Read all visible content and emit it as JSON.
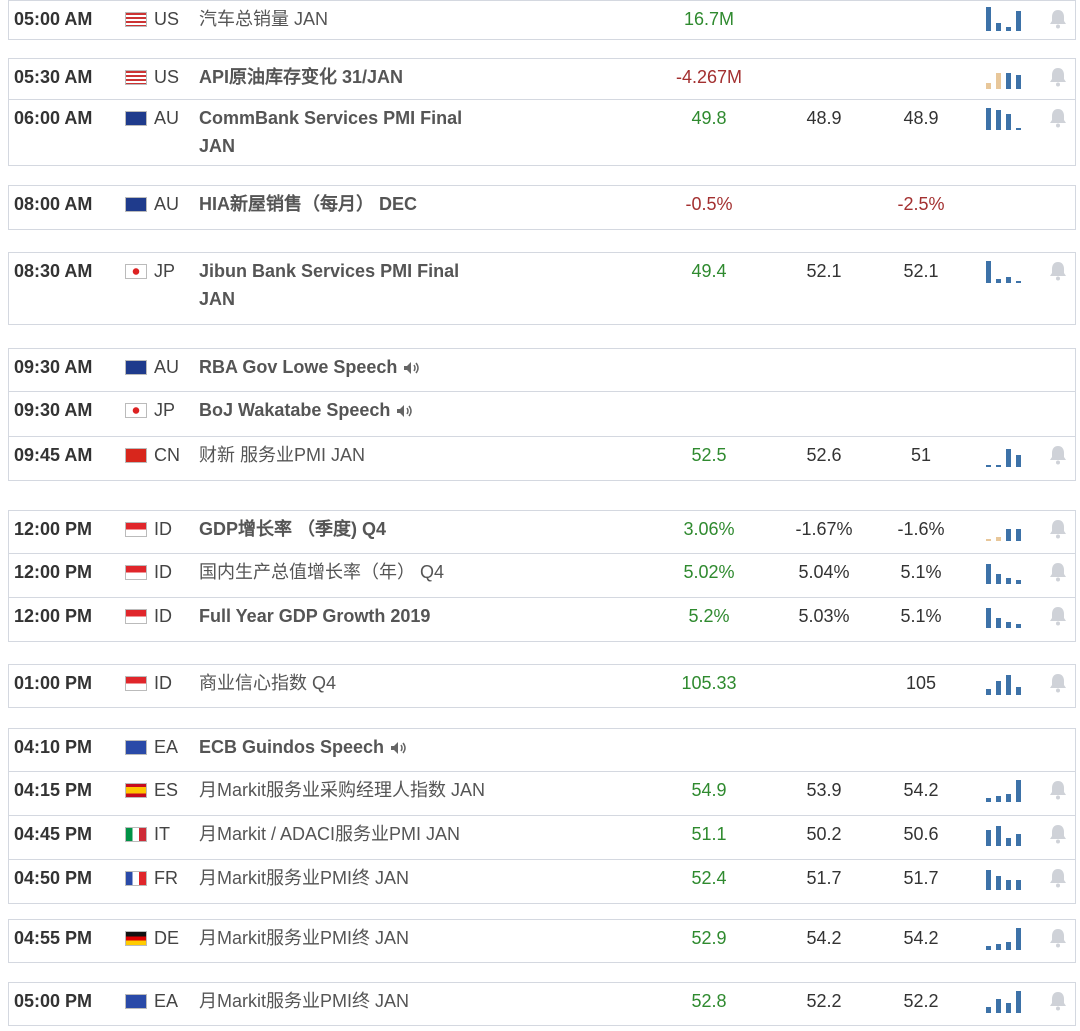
{
  "events": [
    {
      "time": "05:00 AM",
      "country": "US",
      "event": "汽车总销量 JAN",
      "actual": "16.7M",
      "actual_color": "#2f8a2f"
    },
    {
      "time": "05:30 AM",
      "country": "US",
      "event": "API原油库存变化 31/JAN",
      "actual": "-4.267M",
      "actual_color": "#a33030"
    },
    {
      "time": "06:00 AM",
      "country": "AU",
      "event": "CommBank Services PMI Final JAN",
      "actual": "49.8",
      "actual_color": "#2f8a2f",
      "forecast": "48.9",
      "previous": "48.9"
    },
    {
      "time": "08:00 AM",
      "country": "AU",
      "event": "HIA新屋销售（每月） DEC",
      "actual": "-0.5%",
      "actual_color": "#a33030",
      "previous": "-2.5%",
      "previous_color": "#a33030"
    },
    {
      "time": "08:30 AM",
      "country": "JP",
      "event": "Jibun Bank Services PMI Final JAN",
      "actual": "49.4",
      "actual_color": "#2f8a2f",
      "forecast": "52.1",
      "previous": "52.1"
    },
    {
      "time": "09:30 AM",
      "country": "AU",
      "event": "RBA Gov Lowe Speech"
    },
    {
      "time": "09:30 AM",
      "country": "JP",
      "event": "BoJ Wakatabe Speech"
    },
    {
      "time": "09:45 AM",
      "country": "CN",
      "event": "财新 服务业PMI JAN",
      "actual": "52.5",
      "actual_color": "#2f8a2f",
      "forecast": "52.6",
      "previous": "51"
    },
    {
      "time": "12:00 PM",
      "country": "ID",
      "event": "GDP增长率 （季度) Q4",
      "actual": "3.06%",
      "actual_color": "#2f8a2f",
      "forecast": "-1.67%",
      "previous": "-1.6%"
    },
    {
      "time": "12:00 PM",
      "country": "ID",
      "event": "国内生产总值增长率（年） Q4",
      "actual": "5.02%",
      "actual_color": "#2f8a2f",
      "forecast": "5.04%",
      "previous": "5.1%"
    },
    {
      "time": "12:00 PM",
      "country": "ID",
      "event": "Full Year GDP Growth 2019",
      "actual": "5.2%",
      "actual_color": "#2f8a2f",
      "forecast": "5.03%",
      "previous": "5.1%"
    },
    {
      "time": "01:00 PM",
      "country": "ID",
      "event": "商业信心指数 Q4",
      "actual": "105.33",
      "actual_color": "#2f8a2f",
      "previous": "105"
    },
    {
      "time": "04:10 PM",
      "country": "EA",
      "event": "ECB Guindos Speech"
    },
    {
      "time": "04:15 PM",
      "country": "ES",
      "event": "月Markit服务业采购经理人指数 JAN",
      "actual": "54.9",
      "actual_color": "#2f8a2f",
      "forecast": "53.9",
      "previous": "54.2"
    },
    {
      "time": "04:45 PM",
      "country": "IT",
      "event": "月Markit / ADACI服务业PMI JAN",
      "actual": "51.1",
      "actual_color": "#2f8a2f",
      "forecast": "50.2",
      "previous": "50.6"
    },
    {
      "time": "04:50 PM",
      "country": "FR",
      "event": "月Markit服务业PMI终 JAN",
      "actual": "52.4",
      "actual_color": "#2f8a2f",
      "forecast": "51.7",
      "previous": "51.7"
    },
    {
      "time": "04:55 PM",
      "country": "DE",
      "event": "月Markit服务业PMI终 JAN",
      "actual": "52.9",
      "actual_color": "#2f8a2f",
      "forecast": "54.2",
      "previous": "54.2"
    },
    {
      "time": "05:00 PM",
      "country": "EA",
      "event": "月Markit服务业PMI终 JAN",
      "actual": "52.8",
      "actual_color": "#2f8a2f",
      "forecast": "52.2",
      "previous": "52.2"
    }
  ]
}
